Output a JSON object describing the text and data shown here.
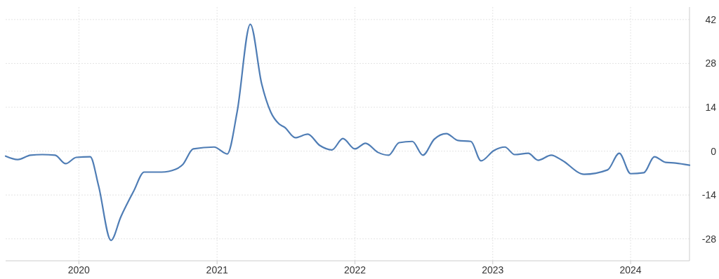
{
  "chart_data": {
    "type": "line",
    "x": [
      "2019-06-21",
      "2019-07-23",
      "2019-08-26",
      "2019-09-26",
      "2019-10-30",
      "2019-11-27",
      "2019-12-25",
      "2020-01-31",
      "2020-02-22",
      "2020-03-26",
      "2020-04-21",
      "2020-05-25",
      "2020-06-22",
      "2020-08-07",
      "2020-09-13",
      "2020-10-02",
      "2020-10-30",
      "2020-12-24",
      "2021-01-28",
      "2021-02-23",
      "2021-03-30",
      "2021-04-29",
      "2021-05-23",
      "2021-06-14",
      "2021-06-29",
      "2021-07-27",
      "2021-08-29",
      "2021-09-30",
      "2021-11-01",
      "2021-11-30",
      "2022-01-01",
      "2022-01-29",
      "2022-03-03",
      "2022-03-31",
      "2022-04-28",
      "2022-06-02",
      "2022-06-30",
      "2022-07-30",
      "2022-08-31",
      "2022-10-01",
      "2022-11-04",
      "2022-12-01",
      "2023-01-04",
      "2023-02-02",
      "2023-02-28",
      "2023-04-05",
      "2023-05-01",
      "2023-06-05",
      "2023-07-03",
      "2023-08-31",
      "2023-11-01",
      "2023-12-02",
      "2024-01-01",
      "2024-02-05",
      "2024-03-04",
      "2024-04-03",
      "2024-04-29",
      "2024-06-05"
    ],
    "series": [
      {
        "color": "#4f7db5",
        "values": [
          -1.6,
          -2.7,
          -1.3,
          -1.1,
          -1.3,
          -4.0,
          -2.0,
          -1.8,
          -11,
          -28.5,
          -21,
          -12.8,
          -6.7,
          -6.7,
          -5.8,
          -4.3,
          0.7,
          1.3,
          -0.9,
          12.5,
          40.5,
          21.5,
          12.5,
          8.7,
          7.6,
          4.3,
          5.4,
          1.8,
          0.4,
          4.0,
          0.7,
          2.5,
          -0.4,
          -1.3,
          2.7,
          3.1,
          -1.3,
          3.8,
          5.6,
          3.4,
          3.1,
          -3.1,
          0.2,
          1.3,
          -1.1,
          -0.7,
          -2.9,
          -1.3,
          -2.9,
          -7.4,
          -6.0,
          -0.7,
          -7.2,
          -6.9,
          -1.8,
          -3.6,
          -3.8,
          -4.5
        ]
      }
    ],
    "xlim": [
      "2019-06-21",
      "2024-06-05"
    ],
    "xticks": [
      {
        "value": "2020-01-01",
        "label": "2020"
      },
      {
        "value": "2021-01-01",
        "label": "2021"
      },
      {
        "value": "2022-01-01",
        "label": "2022"
      },
      {
        "value": "2023-01-01",
        "label": "2023"
      },
      {
        "value": "2024-01-01",
        "label": "2024"
      }
    ],
    "ylim": [
      -35,
      46
    ],
    "yticks": [
      -28,
      -14,
      0,
      14,
      28,
      42
    ],
    "grid": true,
    "line_style": "solid",
    "marker": "none"
  }
}
